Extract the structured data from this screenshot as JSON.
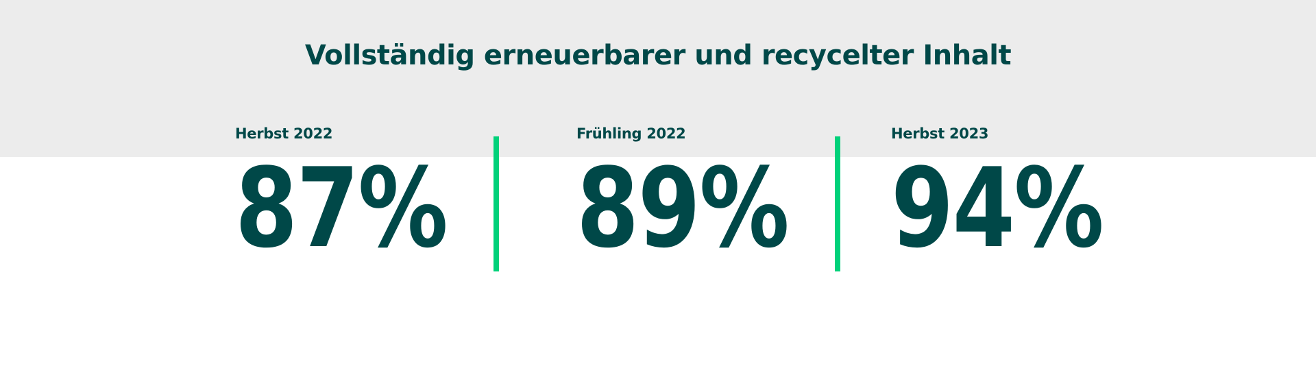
{
  "title": "Vollständig erneuerbarer und recycelter Inhalt",
  "stats": [
    {
      "label": "Herbst 2022",
      "value": "87%"
    },
    {
      "label": "Frühling 2022",
      "value": "89%"
    },
    {
      "label": "Herbst 2023",
      "value": "94%"
    }
  ],
  "colors": {
    "text": "#004848",
    "accent": "#00d17a",
    "band": "#ececec"
  }
}
